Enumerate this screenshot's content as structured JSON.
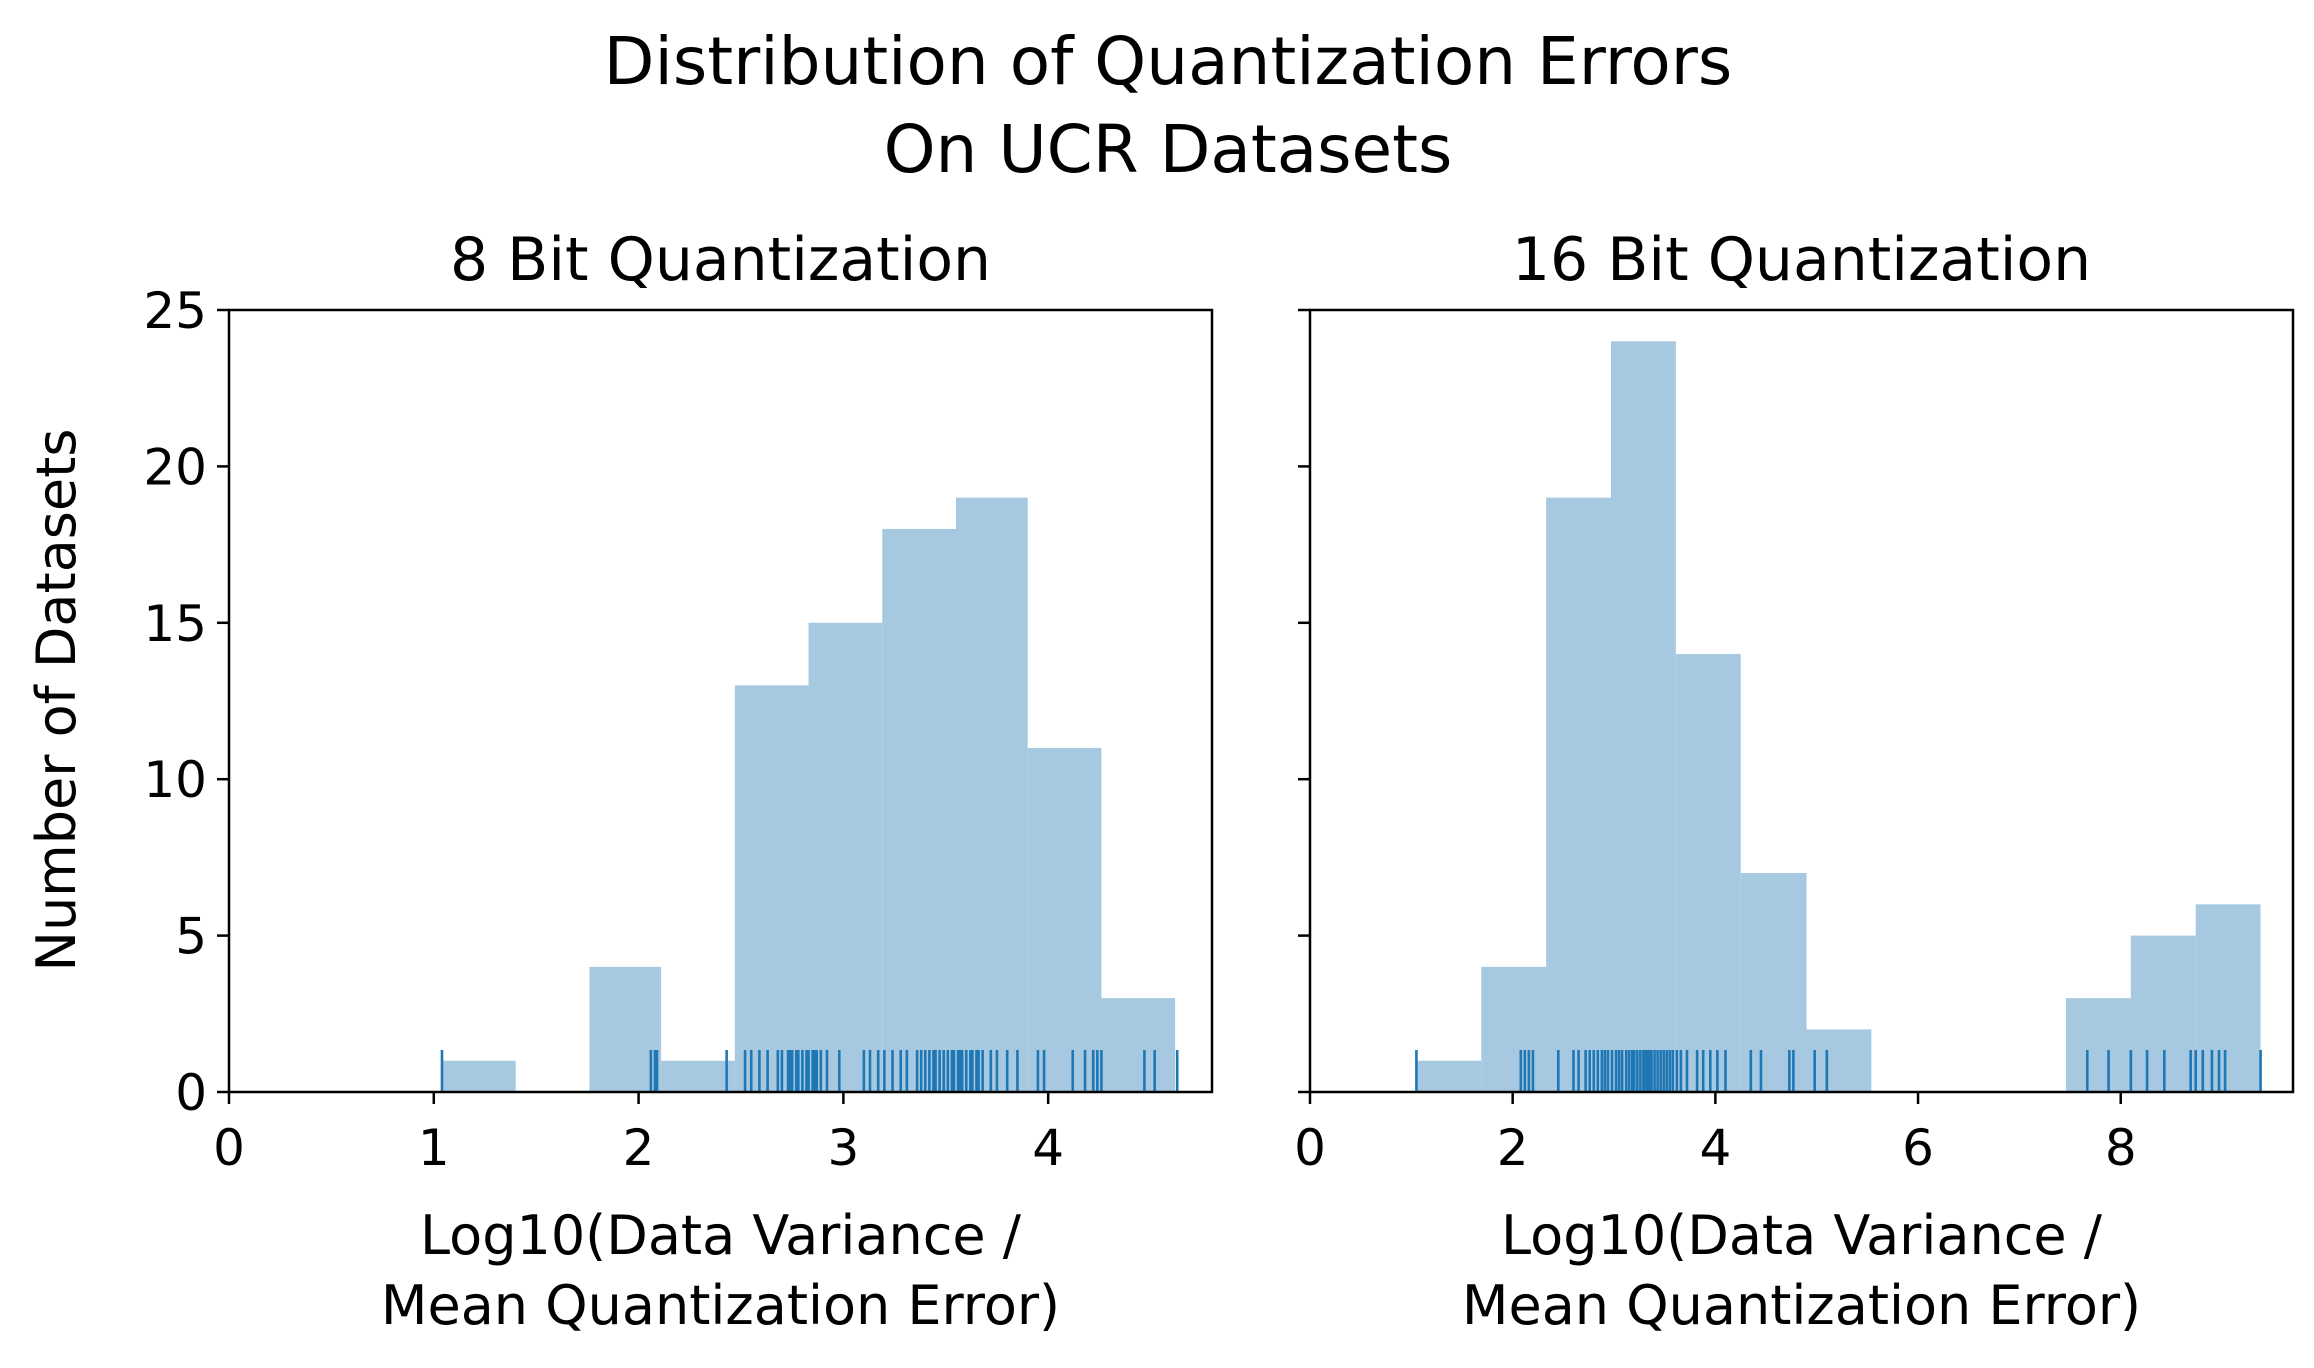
{
  "figure": {
    "title_line1": "Distribution of Quantization Errors",
    "title_line2": "On UCR Datasets",
    "ylabel": "Number of Datasets"
  },
  "colors": {
    "bar": "#a6c8e0",
    "rug": "#1f77b4",
    "axis": "#000000"
  },
  "chart_data": [
    {
      "type": "bar",
      "subtype": "histogram-with-rug",
      "title": "8 Bit Quantization",
      "xlabel_line1": "Log10(Data Variance /",
      "xlabel_line2": "Mean Quantization Error)",
      "ylabel": "Number of Datasets",
      "xlim": [
        0,
        4.8
      ],
      "ylim": [
        0,
        25
      ],
      "xticks": [
        0,
        1,
        2,
        3,
        4
      ],
      "yticks": [
        0,
        5,
        10,
        15,
        20,
        25
      ],
      "bins": [
        {
          "x0": 1.04,
          "x1": 1.4,
          "count": 1
        },
        {
          "x0": 1.4,
          "x1": 1.76,
          "count": 0
        },
        {
          "x0": 1.76,
          "x1": 2.11,
          "count": 4
        },
        {
          "x0": 2.11,
          "x1": 2.47,
          "count": 1
        },
        {
          "x0": 2.47,
          "x1": 2.83,
          "count": 13
        },
        {
          "x0": 2.83,
          "x1": 3.19,
          "count": 15
        },
        {
          "x0": 3.19,
          "x1": 3.55,
          "count": 18
        },
        {
          "x0": 3.55,
          "x1": 3.9,
          "count": 19
        },
        {
          "x0": 3.9,
          "x1": 4.26,
          "count": 11
        },
        {
          "x0": 4.26,
          "x1": 4.62,
          "count": 3
        }
      ],
      "rug": [
        1.04,
        2.06,
        2.08,
        2.09,
        2.43,
        2.52,
        2.55,
        2.59,
        2.63,
        2.68,
        2.7,
        2.73,
        2.74,
        2.75,
        2.77,
        2.78,
        2.8,
        2.82,
        2.83,
        2.85,
        2.86,
        2.87,
        2.89,
        2.92,
        2.98,
        3.1,
        3.13,
        3.17,
        3.2,
        3.24,
        3.28,
        3.31,
        3.36,
        3.38,
        3.4,
        3.42,
        3.44,
        3.45,
        3.47,
        3.49,
        3.51,
        3.53,
        3.54,
        3.56,
        3.57,
        3.58,
        3.6,
        3.62,
        3.63,
        3.65,
        3.66,
        3.68,
        3.72,
        3.75,
        3.8,
        3.85,
        3.95,
        3.98,
        4.12,
        4.18,
        4.22,
        4.24,
        4.26,
        4.47,
        4.52,
        4.63
      ]
    },
    {
      "type": "bar",
      "subtype": "histogram-with-rug",
      "title": "16 Bit Quantization",
      "xlabel_line1": "Log10(Data Variance /",
      "xlabel_line2": "Mean Quantization Error)",
      "ylabel": "Number of Datasets",
      "xlim": [
        0,
        9.7
      ],
      "ylim": [
        0,
        25
      ],
      "xticks": [
        0,
        2,
        4,
        6,
        8
      ],
      "yticks": [
        0,
        5,
        10,
        15,
        20,
        25
      ],
      "bins": [
        {
          "x0": 1.05,
          "x1": 1.69,
          "count": 1
        },
        {
          "x0": 1.69,
          "x1": 2.33,
          "count": 4
        },
        {
          "x0": 2.33,
          "x1": 2.97,
          "count": 19
        },
        {
          "x0": 2.97,
          "x1": 3.61,
          "count": 24
        },
        {
          "x0": 3.61,
          "x1": 4.25,
          "count": 14
        },
        {
          "x0": 4.25,
          "x1": 4.9,
          "count": 7
        },
        {
          "x0": 4.9,
          "x1": 5.54,
          "count": 2
        },
        {
          "x0": 5.54,
          "x1": 6.18,
          "count": 0
        },
        {
          "x0": 6.18,
          "x1": 6.82,
          "count": 0
        },
        {
          "x0": 6.82,
          "x1": 7.46,
          "count": 0
        },
        {
          "x0": 7.46,
          "x1": 8.1,
          "count": 3
        },
        {
          "x0": 8.1,
          "x1": 8.74,
          "count": 5
        },
        {
          "x0": 8.74,
          "x1": 9.38,
          "count": 6
        }
      ],
      "rug": [
        1.05,
        2.08,
        2.12,
        2.16,
        2.2,
        2.45,
        2.6,
        2.65,
        2.72,
        2.76,
        2.8,
        2.84,
        2.88,
        2.91,
        2.94,
        2.98,
        3.02,
        3.05,
        3.08,
        3.12,
        3.15,
        3.18,
        3.2,
        3.23,
        3.26,
        3.29,
        3.31,
        3.33,
        3.35,
        3.37,
        3.4,
        3.43,
        3.46,
        3.49,
        3.52,
        3.55,
        3.58,
        3.62,
        3.66,
        3.72,
        3.82,
        3.88,
        3.95,
        4.02,
        4.1,
        4.35,
        4.45,
        4.73,
        4.77,
        4.98,
        5.1,
        7.67,
        7.88,
        8.1,
        8.26,
        8.43,
        8.69,
        8.74,
        8.81,
        8.9,
        8.97,
        9.03,
        9.38
      ]
    }
  ]
}
